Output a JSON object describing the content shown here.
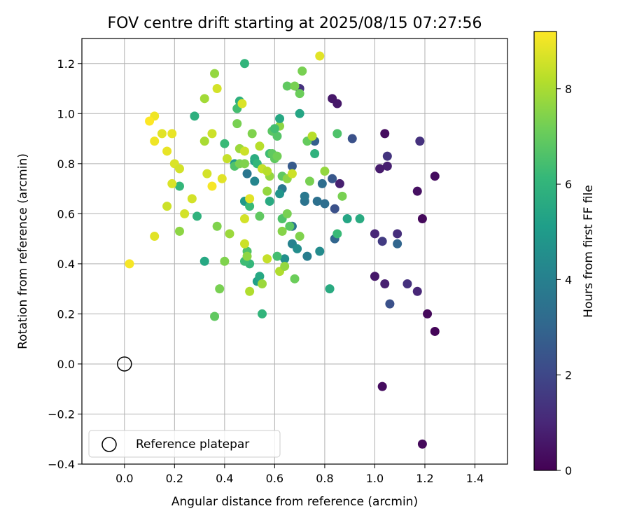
{
  "chart_data": {
    "type": "scatter",
    "title": "FOV centre drift starting at 2025/08/15 07:27:56",
    "xlabel": "Angular distance from reference (arcmin)",
    "ylabel": "Rotation from reference (arcmin)",
    "xlim": [
      -0.17,
      1.53
    ],
    "ylim": [
      -0.4,
      1.3
    ],
    "xticks": [
      0.0,
      0.2,
      0.4,
      0.6,
      0.8,
      1.0,
      1.2,
      1.4
    ],
    "xtick_labels": [
      "0.0",
      "0.2",
      "0.4",
      "0.6",
      "0.8",
      "1.0",
      "1.2",
      "1.4"
    ],
    "yticks": [
      -0.4,
      -0.2,
      0.0,
      0.2,
      0.4,
      0.6,
      0.8,
      1.0,
      1.2
    ],
    "ytick_labels": [
      "−0.4",
      "−0.2",
      "0.0",
      "0.2",
      "0.4",
      "0.6",
      "0.8",
      "1.0",
      "1.2"
    ],
    "grid": true,
    "colormap": "viridis",
    "colorbar": {
      "label": "Hours from first FF file",
      "range": [
        0,
        9.2
      ],
      "ticks": [
        0,
        2,
        4,
        6,
        8
      ],
      "tick_labels": [
        "0",
        "2",
        "4",
        "6",
        "8"
      ]
    },
    "reference_point": {
      "x": 0.0,
      "y": 0.0,
      "label": "Reference platepar"
    },
    "legend": {
      "position": "lower-left",
      "entries": [
        "Reference platepar"
      ]
    },
    "points": [
      [
        1.19,
        -0.32,
        0.2
      ],
      [
        1.03,
        -0.09,
        0.3
      ],
      [
        1.24,
        0.13,
        0.1
      ],
      [
        1.21,
        0.2,
        0.2
      ],
      [
        1.17,
        0.29,
        1.0
      ],
      [
        1.13,
        0.32,
        1.3
      ],
      [
        1.06,
        0.24,
        2.3
      ],
      [
        1.04,
        0.32,
        0.8
      ],
      [
        1.0,
        0.35,
        0.6
      ],
      [
        1.03,
        0.49,
        1.6
      ],
      [
        1.0,
        0.52,
        1.0
      ],
      [
        1.09,
        0.52,
        1.2
      ],
      [
        1.09,
        0.48,
        3.0
      ],
      [
        1.19,
        0.58,
        0.2
      ],
      [
        1.17,
        0.69,
        0.4
      ],
      [
        1.24,
        0.75,
        0.3
      ],
      [
        1.18,
        0.89,
        1.3
      ],
      [
        1.05,
        0.79,
        0.8
      ],
      [
        1.05,
        0.83,
        1.4
      ],
      [
        1.02,
        0.78,
        0.7
      ],
      [
        1.04,
        0.92,
        0.3
      ],
      [
        0.91,
        0.9,
        2.3
      ],
      [
        0.83,
        1.06,
        0.6
      ],
      [
        0.85,
        1.04,
        0.6
      ],
      [
        0.7,
        1.1,
        1.3
      ],
      [
        0.76,
        0.89,
        2.8
      ],
      [
        0.86,
        0.72,
        0.8
      ],
      [
        0.83,
        0.74,
        2.5
      ],
      [
        0.79,
        0.72,
        3.3
      ],
      [
        0.84,
        0.62,
        2.3
      ],
      [
        0.8,
        0.64,
        3.3
      ],
      [
        0.77,
        0.65,
        3.4
      ],
      [
        0.72,
        0.65,
        3.5
      ],
      [
        0.72,
        0.67,
        3.7
      ],
      [
        0.67,
        0.79,
        2.6
      ],
      [
        0.67,
        0.55,
        3.6
      ],
      [
        0.67,
        0.48,
        4.1
      ],
      [
        0.69,
        0.46,
        4.5
      ],
      [
        0.73,
        0.43,
        3.9
      ],
      [
        0.78,
        0.45,
        4.4
      ],
      [
        0.84,
        0.5,
        3.0
      ],
      [
        0.85,
        0.52,
        6.2
      ],
      [
        0.89,
        0.58,
        5.4
      ],
      [
        0.94,
        0.58,
        5.6
      ],
      [
        0.82,
        0.3,
        5.6
      ],
      [
        0.64,
        0.42,
        4.6
      ],
      [
        0.63,
        0.7,
        3.7
      ],
      [
        0.62,
        0.68,
        4.8
      ],
      [
        0.58,
        0.65,
        5.6
      ],
      [
        0.52,
        0.73,
        4.2
      ],
      [
        0.49,
        0.76,
        3.6
      ],
      [
        0.52,
        0.81,
        5.2
      ],
      [
        0.44,
        0.8,
        4.9
      ],
      [
        0.48,
        0.65,
        4.9
      ],
      [
        0.5,
        0.63,
        6.2
      ],
      [
        0.53,
        0.33,
        5.2
      ],
      [
        0.54,
        0.35,
        5.5
      ],
      [
        0.55,
        0.2,
        6.0
      ],
      [
        0.5,
        0.4,
        6.1
      ],
      [
        0.48,
        0.41,
        6.3
      ],
      [
        0.49,
        0.45,
        6.6
      ],
      [
        0.49,
        0.43,
        7.6
      ],
      [
        0.48,
        0.48,
        8.5
      ],
      [
        0.5,
        0.29,
        8.1
      ],
      [
        0.55,
        0.32,
        7.8
      ],
      [
        0.57,
        0.42,
        8.4
      ],
      [
        0.61,
        0.43,
        6.4
      ],
      [
        0.62,
        0.37,
        8.1
      ],
      [
        0.64,
        0.39,
        7.7
      ],
      [
        0.68,
        0.34,
        7.1
      ],
      [
        0.7,
        0.51,
        7.4
      ],
      [
        0.63,
        0.53,
        7.5
      ],
      [
        0.63,
        0.58,
        6.6
      ],
      [
        0.65,
        0.6,
        7.3
      ],
      [
        0.66,
        0.55,
        6.8
      ],
      [
        0.54,
        0.59,
        6.9
      ],
      [
        0.48,
        0.58,
        8.6
      ],
      [
        0.5,
        0.66,
        8.8
      ],
      [
        0.42,
        0.52,
        7.8
      ],
      [
        0.38,
        0.3,
        7.3
      ],
      [
        0.36,
        0.19,
        6.9
      ],
      [
        0.4,
        0.41,
        7.4
      ],
      [
        0.37,
        0.55,
        7.4
      ],
      [
        0.32,
        0.41,
        5.5
      ],
      [
        0.29,
        0.59,
        5.9
      ],
      [
        0.22,
        0.53,
        7.6
      ],
      [
        0.22,
        0.71,
        6.1
      ],
      [
        0.24,
        0.6,
        8.6
      ],
      [
        0.27,
        0.66,
        8.6
      ],
      [
        0.19,
        0.72,
        8.7
      ],
      [
        0.17,
        0.63,
        8.5
      ],
      [
        0.12,
        0.51,
        8.8
      ],
      [
        0.02,
        0.4,
        9.1
      ],
      [
        0.17,
        0.85,
        8.9
      ],
      [
        0.2,
        0.8,
        8.7
      ],
      [
        0.22,
        0.78,
        8.6
      ],
      [
        0.12,
        0.89,
        9.0
      ],
      [
        0.15,
        0.92,
        8.8
      ],
      [
        0.19,
        0.92,
        8.9
      ],
      [
        0.12,
        0.99,
        9.0
      ],
      [
        0.1,
        0.97,
        9.2
      ],
      [
        0.28,
        0.99,
        5.8
      ],
      [
        0.32,
        0.89,
        8.0
      ],
      [
        0.35,
        0.92,
        8.5
      ],
      [
        0.32,
        1.06,
        7.9
      ],
      [
        0.37,
        1.1,
        8.6
      ],
      [
        0.36,
        1.16,
        7.7
      ],
      [
        0.33,
        0.76,
        8.6
      ],
      [
        0.35,
        0.71,
        9.1
      ],
      [
        0.39,
        0.74,
        8.8
      ],
      [
        0.4,
        0.88,
        6.2
      ],
      [
        0.41,
        0.82,
        8.4
      ],
      [
        0.44,
        0.79,
        6.6
      ],
      [
        0.45,
        0.96,
        7.3
      ],
      [
        0.45,
        1.02,
        6.4
      ],
      [
        0.46,
        1.05,
        5.8
      ],
      [
        0.47,
        1.04,
        8.7
      ],
      [
        0.46,
        0.86,
        7.8
      ],
      [
        0.48,
        0.85,
        8.5
      ],
      [
        0.48,
        1.2,
        6.0
      ],
      [
        0.46,
        0.8,
        7.3
      ],
      [
        0.48,
        0.8,
        7.4
      ],
      [
        0.51,
        0.92,
        7.4
      ],
      [
        0.52,
        0.82,
        5.7
      ],
      [
        0.53,
        0.8,
        6.1
      ],
      [
        0.54,
        0.87,
        8.2
      ],
      [
        0.55,
        0.78,
        8.4
      ],
      [
        0.57,
        0.69,
        7.7
      ],
      [
        0.58,
        0.75,
        7.7
      ],
      [
        0.57,
        0.77,
        8.2
      ],
      [
        0.58,
        0.84,
        6.3
      ],
      [
        0.59,
        0.84,
        6.9
      ],
      [
        0.6,
        0.82,
        6.9
      ],
      [
        0.59,
        0.93,
        6.8
      ],
      [
        0.61,
        0.91,
        6.7
      ],
      [
        0.62,
        0.95,
        7.6
      ],
      [
        0.62,
        0.98,
        5.5
      ],
      [
        0.6,
        0.94,
        6.4
      ],
      [
        0.61,
        0.83,
        7.2
      ],
      [
        0.63,
        0.75,
        6.9
      ],
      [
        0.65,
        0.74,
        7.6
      ],
      [
        0.67,
        0.76,
        8.5
      ],
      [
        0.65,
        1.11,
        6.9
      ],
      [
        0.68,
        1.11,
        7.3
      ],
      [
        0.7,
        1.08,
        7.1
      ],
      [
        0.71,
        1.17,
        7.3
      ],
      [
        0.7,
        1.0,
        5.4
      ],
      [
        0.73,
        0.89,
        7.0
      ],
      [
        0.76,
        0.84,
        5.9
      ],
      [
        0.78,
        1.23,
        8.8
      ],
      [
        0.74,
        0.73,
        7.3
      ],
      [
        0.8,
        0.77,
        7.7
      ],
      [
        0.85,
        0.92,
        6.6
      ],
      [
        0.87,
        0.67,
        7.3
      ],
      [
        0.75,
        0.91,
        8.2
      ]
    ]
  }
}
